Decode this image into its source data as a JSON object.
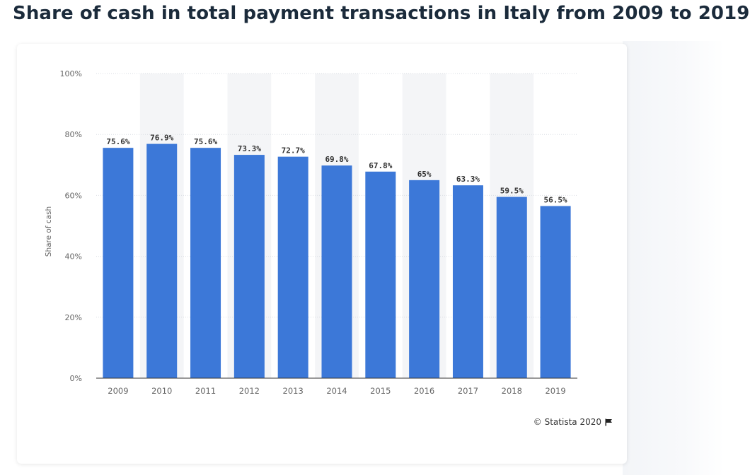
{
  "page": {
    "title": "Share of cash in total payment transactions in Italy from 2009 to 2019"
  },
  "footer": {
    "credit": "© Statista 2020",
    "flag_icon": "flag-icon"
  },
  "colors": {
    "bar": "#3c78d8",
    "band": "#f4f5f7",
    "grid": "#d9dde3",
    "axis_text": "#666666",
    "label_text": "#333333"
  },
  "chart_data": {
    "type": "bar",
    "title": "Share of cash in total payment transactions in Italy from 2009 to 2019",
    "xlabel": "",
    "ylabel": "Share of cash",
    "ylim": [
      0,
      100
    ],
    "yticks": [
      0,
      20,
      40,
      60,
      80,
      100
    ],
    "ytick_labels": [
      "0%",
      "20%",
      "40%",
      "60%",
      "80%",
      "100%"
    ],
    "grid": true,
    "categories": [
      "2009",
      "2010",
      "2011",
      "2012",
      "2013",
      "2014",
      "2015",
      "2016",
      "2017",
      "2018",
      "2019"
    ],
    "values": [
      75.6,
      76.9,
      75.6,
      73.3,
      72.7,
      69.8,
      67.8,
      65,
      63.3,
      59.5,
      56.5
    ],
    "data_labels": [
      "75.6%",
      "76.9%",
      "75.6%",
      "73.3%",
      "72.7%",
      "69.8%",
      "67.8%",
      "65%",
      "63.3%",
      "59.5%",
      "56.5%"
    ]
  }
}
